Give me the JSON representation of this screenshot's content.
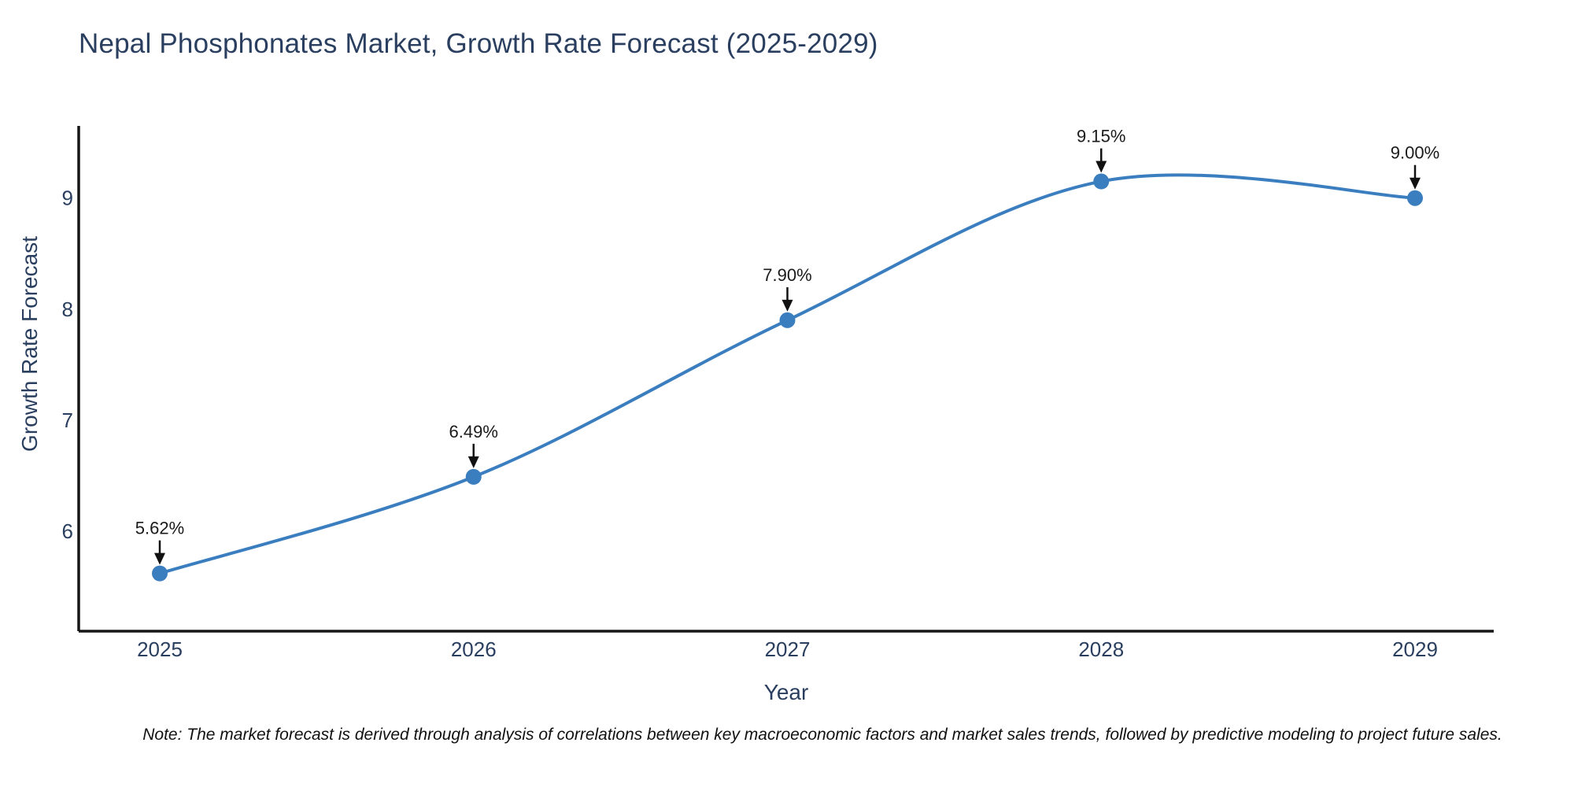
{
  "title": "Nepal Phosphonates Market, Growth Rate Forecast (2025-2029)",
  "chart_data": {
    "type": "line",
    "title": "Nepal Phosphonates Market, Growth Rate Forecast (2025-2029)",
    "x": [
      "2025",
      "2026",
      "2027",
      "2028",
      "2029"
    ],
    "series": [
      {
        "name": "Growth Rate Forecast",
        "values": [
          5.62,
          6.49,
          7.9,
          9.15,
          9.0
        ]
      }
    ],
    "point_labels": [
      "5.62%",
      "6.49%",
      "7.90%",
      "9.15%",
      "9.00%"
    ],
    "xlabel": "Year",
    "ylabel": "Growth Rate Forecast",
    "y_ticks": [
      6,
      7,
      8,
      9
    ],
    "ylim": [
      5.1,
      9.65
    ],
    "line_shape": "spline",
    "grid": false,
    "legend_position": "none",
    "colors": {
      "line": "#3a7ebf",
      "marker": "#3a7ebf",
      "axis_line": "#161616",
      "tick_text": "#2a3f5f",
      "title_text": "#2a3f5f",
      "annotation_text": "#1a1a1a",
      "arrow": "#111111"
    }
  },
  "note": "Note: The market forecast is derived through analysis of correlations between key macroeconomic factors and market sales trends, followed by predictive modeling to project future sales."
}
